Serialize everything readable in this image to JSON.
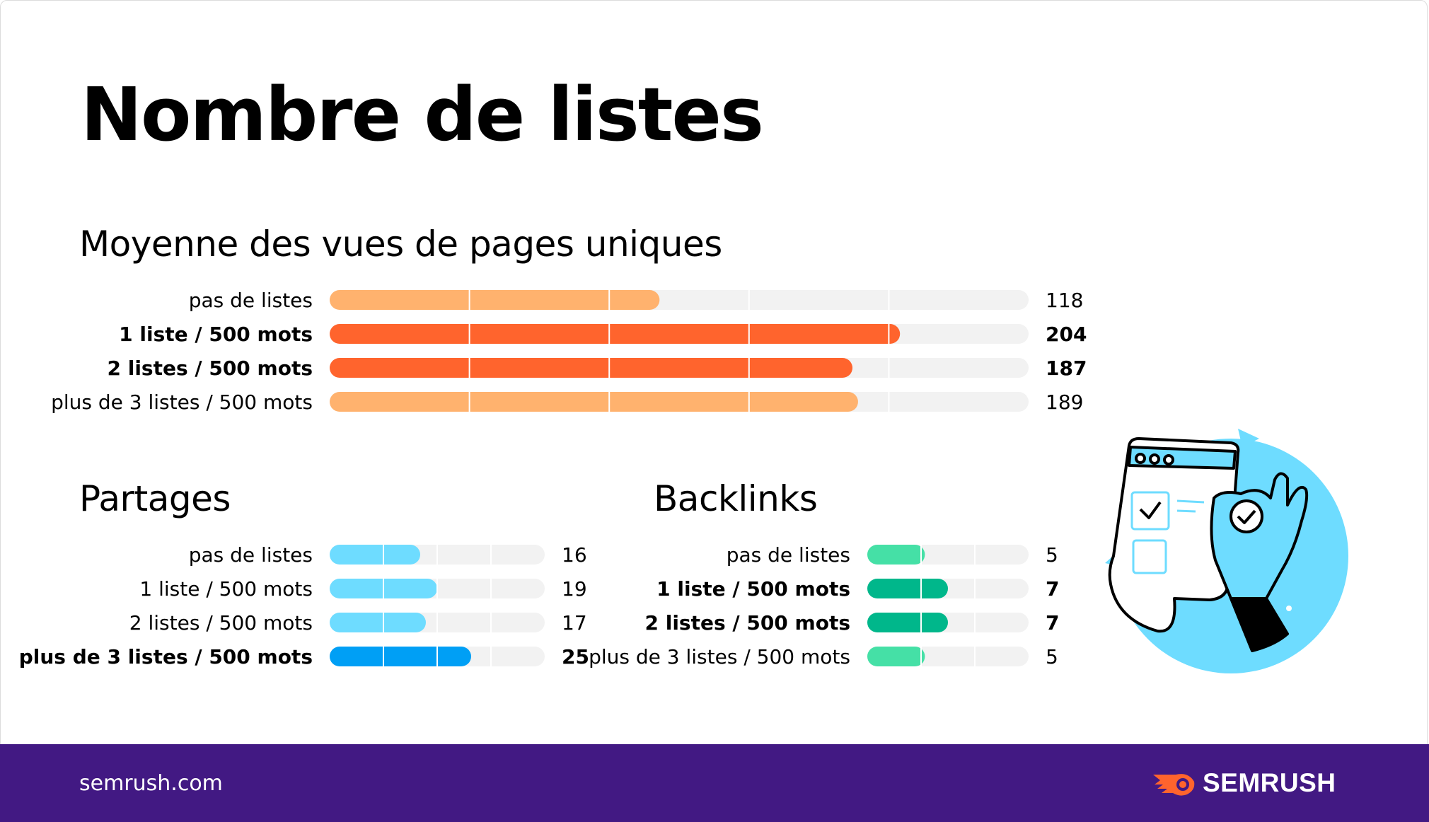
{
  "title": "Nombre de listes",
  "footer": {
    "url": "semrush.com",
    "brand": "SEMRUSH"
  },
  "colors": {
    "track": "#f2f2f2",
    "orange_light": "#ffb26e",
    "orange_dark": "#ff642d",
    "blue_light": "#6edcff",
    "blue_dark": "#009ff5",
    "green_light": "#45e0a6",
    "green_dark": "#00b78b",
    "footer_bg": "#421983"
  },
  "chart_data": [
    {
      "type": "bar",
      "title": "Moyenne des vues de pages uniques",
      "categories": [
        "pas de listes",
        "1 liste / 500 mots",
        "2 listes / 500 mots",
        "plus de 3 listes / 500 mots"
      ],
      "values": [
        118,
        204,
        187,
        189
      ],
      "highlighted": [
        false,
        true,
        true,
        false
      ],
      "xlim": [
        0,
        250
      ]
    },
    {
      "type": "bar",
      "title": "Partages",
      "categories": [
        "pas de listes",
        "1 liste / 500 mots",
        "2 listes / 500 mots",
        "plus de 3 listes / 500 mots"
      ],
      "values": [
        16,
        19,
        17,
        25
      ],
      "highlighted": [
        false,
        false,
        false,
        true
      ],
      "xlim": [
        0,
        38
      ]
    },
    {
      "type": "bar",
      "title": "Backlinks",
      "categories": [
        "pas de listes",
        "1 liste / 500 mots",
        "2 listes / 500 mots",
        "plus de 3 listes / 500 mots"
      ],
      "values": [
        5,
        7,
        7,
        5
      ],
      "highlighted": [
        false,
        true,
        true,
        false
      ],
      "xlim": [
        0,
        14
      ]
    }
  ]
}
